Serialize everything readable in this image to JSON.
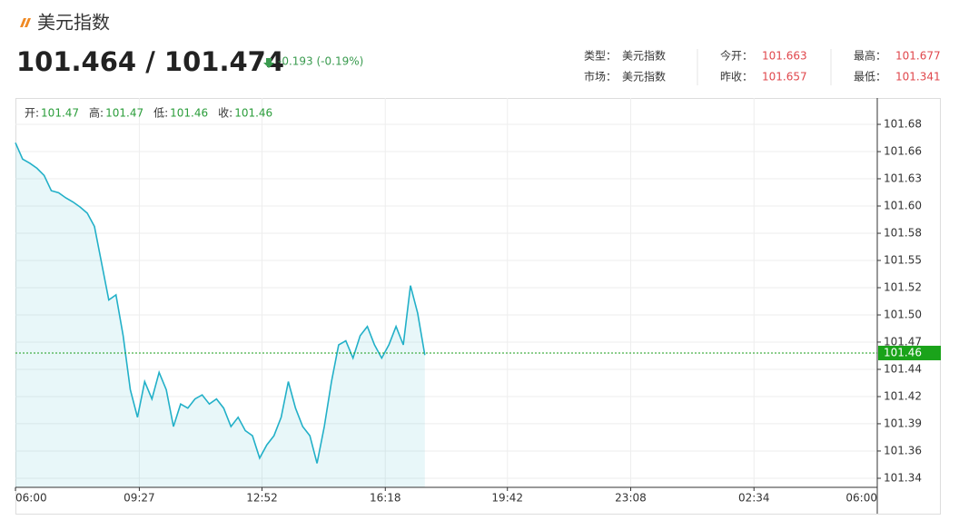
{
  "header": {
    "title": "美元指数",
    "bid": 101.464,
    "separator": "/",
    "ask": 101.474,
    "change": "-0.193 (-0.19%)",
    "info": [
      [
        {
          "label": "类型：",
          "value": "美元指数"
        },
        {
          "label": "今开：",
          "value": 101.663
        },
        {
          "label": "最高：",
          "value": 101.677
        }
      ],
      [
        {
          "label": "市场：",
          "value": "美元指数"
        },
        {
          "label": "昨收：",
          "value": 101.657
        },
        {
          "label": "最低：",
          "value": 101.341
        }
      ]
    ]
  },
  "chart_data": {
    "type": "line",
    "ohlc": [
      {
        "label": "开:",
        "value": 101.47
      },
      {
        "label": "高:",
        "value": 101.47
      },
      {
        "label": "低:",
        "value": 101.46
      },
      {
        "label": "收:",
        "value": 101.46
      }
    ],
    "x": [
      0,
      12,
      24,
      36,
      48,
      60,
      72,
      84,
      96,
      108,
      120,
      132,
      144,
      156,
      168,
      180,
      192,
      204,
      216,
      228,
      240,
      252,
      264,
      276,
      288,
      300,
      312,
      324,
      336,
      348,
      360,
      372,
      384,
      396,
      408,
      420,
      432,
      444,
      456,
      468,
      480,
      492,
      504,
      516,
      528,
      540,
      552,
      564,
      576,
      588,
      600,
      612,
      624,
      636,
      648,
      660,
      672,
      684
    ],
    "series": [
      {
        "color": "#22b0c8",
        "values": [
          101.666,
          101.65,
          101.646,
          101.641,
          101.634,
          101.619,
          101.617,
          101.612,
          101.608,
          101.603,
          101.597,
          101.584,
          101.548,
          101.512,
          101.517,
          101.477,
          101.424,
          101.397,
          101.432,
          101.415,
          101.441,
          101.424,
          101.388,
          101.41,
          101.406,
          101.415,
          101.419,
          101.41,
          101.415,
          101.406,
          101.388,
          101.397,
          101.384,
          101.379,
          101.357,
          101.37,
          101.379,
          101.397,
          101.432,
          101.406,
          101.388,
          101.379,
          101.352,
          101.388,
          101.432,
          101.468,
          101.472,
          101.455,
          101.477,
          101.486,
          101.468,
          101.455,
          101.468,
          101.486,
          101.468,
          101.526,
          101.499,
          101.458
        ]
      }
    ],
    "current": 101.46,
    "xlim": [
      0,
      1440
    ],
    "xticks": [
      {
        "value": 0,
        "label": "06:00"
      },
      {
        "value": 207,
        "label": "09:27"
      },
      {
        "value": 412,
        "label": "12:52"
      },
      {
        "value": 618,
        "label": "16:18"
      },
      {
        "value": 822,
        "label": "19:42"
      },
      {
        "value": 1028,
        "label": "23:08"
      },
      {
        "value": 1234,
        "label": "02:34"
      },
      {
        "value": 1440,
        "label": "06:00"
      }
    ],
    "ylim": [
      101.3284,
      101.7098
    ],
    "yticks": [
      {
        "value": 101.684,
        "label": "101.68"
      },
      {
        "value": 101.6573,
        "label": "101.66"
      },
      {
        "value": 101.6307,
        "label": "101.63"
      },
      {
        "value": 101.604,
        "label": "101.60"
      },
      {
        "value": 101.5773,
        "label": "101.58"
      },
      {
        "value": 101.5507,
        "label": "101.55"
      },
      {
        "value": 101.524,
        "label": "101.52"
      },
      {
        "value": 101.4973,
        "label": "101.50"
      },
      {
        "value": 101.4707,
        "label": "101.47"
      },
      {
        "value": 101.444,
        "label": "101.44"
      },
      {
        "value": 101.4173,
        "label": "101.42"
      },
      {
        "value": 101.3907,
        "label": "101.39"
      },
      {
        "value": 101.364,
        "label": "101.36"
      },
      {
        "value": 101.3373,
        "label": "101.34"
      }
    ],
    "grid": true
  }
}
